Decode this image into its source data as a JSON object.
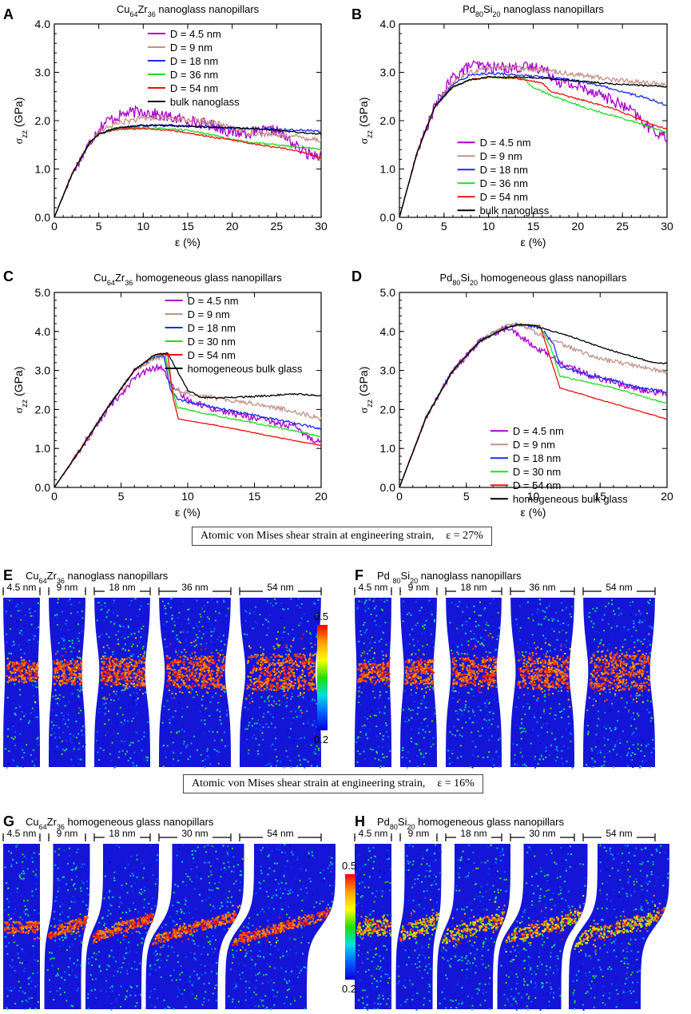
{
  "strain_labels": {
    "top": "Atomic von Mises shear strain at engineering strain,",
    "top_value": "ε = 27%",
    "bottom": "Atomic von Mises shear strain at engineering strain,",
    "bottom_value": "ε = 16%"
  },
  "colorbar": {
    "max": "0.5",
    "min": "0.2"
  },
  "snapshot_panels": [
    {
      "letter": "E",
      "title_pre": "Cu",
      "sub1": "64",
      "mid": "Zr",
      "sub2": "36",
      "title_post": " nanoglass nanopillars",
      "sizes": [
        "4.5 nm",
        "9 nm",
        "18 nm",
        "36 nm",
        "54 nm"
      ]
    },
    {
      "letter": "F",
      "title_pre": "Pd ",
      "sub1": "80",
      "mid": "Si",
      "sub2": "20",
      "title_post": " nanoglass nanopillars",
      "sizes": [
        "4.5 nm",
        "9 nm",
        "18 nm",
        "36 nm",
        "54 nm"
      ]
    },
    {
      "letter": "G",
      "title_pre": "Cu",
      "sub1": "64",
      "mid": "Zr",
      "sub2": "36",
      "title_post": " homogeneous glass nanopillars",
      "sizes": [
        "4.5 nm",
        "9 nm",
        "18 nm",
        "30 nm",
        "54 nm"
      ]
    },
    {
      "letter": "H",
      "title_pre": "Pd",
      "sub1": "80",
      "mid": "Si",
      "sub2": "20",
      "title_post": " homogeneous glass nanopillars",
      "sizes": [
        "4.5 nm",
        "9 nm",
        "18 nm",
        "30 nm",
        "54 nm"
      ]
    }
  ],
  "chart_data": [
    {
      "panel": "A",
      "type": "line",
      "title_pre": "Cu",
      "sub1": "64",
      "mid": "Zr",
      "sub2": "36",
      "title_post": " nanoglass nanopillars",
      "xlabel": "ε (%)",
      "ylabel": "σ",
      "ylabel_sub": "zz",
      "ylabel_unit": " (GPa)",
      "xlim": [
        0,
        30
      ],
      "ylim": [
        0,
        4
      ],
      "xticks": [
        0,
        5,
        10,
        15,
        20,
        25,
        30
      ],
      "xtick_labels": [
        "0",
        "5",
        "10",
        "15",
        "20",
        "25",
        "30"
      ],
      "yticks": [
        0,
        1,
        2,
        3,
        4
      ],
      "ytick_labels": [
        "0.0",
        "1.0",
        "2.0",
        "3.0",
        "4.0"
      ],
      "legend_position": "top-right",
      "series": [
        {
          "name": "D = 4.5 nm",
          "color": "#aa00cc",
          "noise": 0.12,
          "x": [
            0,
            2,
            4,
            5,
            6,
            8,
            10,
            12,
            15,
            18,
            20,
            22,
            25,
            27,
            28,
            29,
            30
          ],
          "y": [
            0,
            0.9,
            1.55,
            1.85,
            2.0,
            2.15,
            2.2,
            2.1,
            2.0,
            1.9,
            1.75,
            1.75,
            1.8,
            1.5,
            1.35,
            1.3,
            1.3
          ]
        },
        {
          "name": "D = 9 nm",
          "color": "#c49088",
          "noise": 0.06,
          "x": [
            0,
            2,
            4,
            5,
            7,
            10,
            13,
            16,
            18,
            20,
            22,
            25,
            28,
            30
          ],
          "y": [
            0,
            0.9,
            1.55,
            1.75,
            1.95,
            2.05,
            2.05,
            2.0,
            1.95,
            1.85,
            1.75,
            1.7,
            1.65,
            1.6
          ]
        },
        {
          "name": "D = 18 nm",
          "color": "#1a2ee8",
          "noise": 0.025,
          "x": [
            0,
            2,
            4,
            5,
            7,
            10,
            13,
            16,
            20,
            25,
            28,
            30
          ],
          "y": [
            0,
            0.9,
            1.55,
            1.72,
            1.85,
            1.9,
            1.9,
            1.88,
            1.85,
            1.82,
            1.8,
            1.78
          ]
        },
        {
          "name": "D = 36 nm",
          "color": "#22dd22",
          "noise": 0.02,
          "x": [
            0,
            2,
            4,
            5,
            7,
            10,
            13,
            15,
            18,
            20,
            22,
            25,
            28,
            30
          ],
          "y": [
            0,
            0.9,
            1.55,
            1.72,
            1.83,
            1.85,
            1.83,
            1.8,
            1.7,
            1.6,
            1.55,
            1.5,
            1.45,
            1.4
          ]
        },
        {
          "name": "D = 54 nm",
          "color": "#ee1111",
          "noise": 0.015,
          "x": [
            0,
            2,
            4,
            5,
            7,
            10,
            13,
            15,
            18,
            20,
            23,
            26,
            28,
            30
          ],
          "y": [
            0,
            0.9,
            1.55,
            1.72,
            1.82,
            1.84,
            1.8,
            1.75,
            1.65,
            1.6,
            1.5,
            1.42,
            1.35,
            1.22
          ]
        },
        {
          "name": "bulk nanoglass",
          "color": "#000000",
          "noise": 0.015,
          "x": [
            0,
            2,
            4,
            5,
            7,
            10,
            13,
            16,
            20,
            23,
            25,
            28,
            30
          ],
          "y": [
            0,
            0.9,
            1.55,
            1.72,
            1.85,
            1.9,
            1.9,
            1.88,
            1.85,
            1.83,
            1.8,
            1.75,
            1.72
          ]
        }
      ]
    },
    {
      "panel": "B",
      "type": "line",
      "title_pre": "Pd",
      "sub1": "80",
      "mid": "Si",
      "sub2": "20",
      "title_post": " nanoglass nanopillars",
      "xlabel": "ε (%)",
      "ylabel": "σ",
      "ylabel_sub": "zz",
      "ylabel_unit": " (GPa)",
      "xlim": [
        0,
        30
      ],
      "ylim": [
        0,
        4
      ],
      "xticks": [
        0,
        5,
        10,
        15,
        20,
        25,
        30
      ],
      "xtick_labels": [
        "0",
        "5",
        "10",
        "15",
        "20",
        "25",
        "30"
      ],
      "yticks": [
        0,
        1,
        2,
        3,
        4
      ],
      "ytick_labels": [
        "0.0",
        "1.0",
        "2.0",
        "3.0",
        "4.0"
      ],
      "legend_position": "bottom-center",
      "series": [
        {
          "name": "D = 4.5 nm",
          "color": "#aa00cc",
          "noise": 0.12,
          "x": [
            0,
            2,
            4,
            6,
            8,
            10,
            13,
            16,
            18,
            20,
            22,
            24,
            26,
            28,
            30
          ],
          "y": [
            0,
            1.35,
            2.3,
            2.9,
            3.15,
            3.1,
            3.1,
            3.1,
            2.8,
            2.7,
            2.6,
            2.4,
            2.2,
            1.85,
            1.65
          ]
        },
        {
          "name": "D = 9 nm",
          "color": "#c49088",
          "noise": 0.05,
          "x": [
            0,
            2,
            4,
            6,
            8,
            10,
            13,
            16,
            20,
            24,
            28,
            30
          ],
          "y": [
            0,
            1.35,
            2.3,
            2.8,
            3.0,
            3.1,
            3.1,
            3.05,
            2.95,
            2.85,
            2.78,
            2.72
          ]
        },
        {
          "name": "D = 18 nm",
          "color": "#1a2ee8",
          "noise": 0.025,
          "x": [
            0,
            2,
            4,
            6,
            8,
            10,
            13,
            16,
            19,
            22,
            25,
            28,
            30
          ],
          "y": [
            0,
            1.35,
            2.3,
            2.75,
            2.95,
            2.98,
            2.95,
            2.9,
            2.85,
            2.75,
            2.6,
            2.45,
            2.32
          ]
        },
        {
          "name": "D = 36 nm",
          "color": "#22dd22",
          "noise": 0.02,
          "x": [
            0,
            2,
            4,
            6,
            8,
            10,
            13,
            14,
            15,
            18,
            22,
            26,
            30
          ],
          "y": [
            0,
            1.35,
            2.3,
            2.7,
            2.85,
            2.9,
            2.88,
            2.85,
            2.68,
            2.45,
            2.2,
            2.0,
            1.75
          ]
        },
        {
          "name": "D = 54 nm",
          "color": "#ee1111",
          "noise": 0.015,
          "x": [
            0,
            2,
            4,
            6,
            8,
            10,
            13,
            16,
            17,
            20,
            24,
            28,
            30
          ],
          "y": [
            0,
            1.35,
            2.3,
            2.7,
            2.85,
            2.9,
            2.88,
            2.78,
            2.6,
            2.45,
            2.25,
            1.95,
            1.82
          ]
        },
        {
          "name": "bulk nanoglass",
          "color": "#000000",
          "noise": 0.015,
          "x": [
            0,
            2,
            4,
            6,
            8,
            10,
            13,
            16,
            20,
            24,
            28,
            30
          ],
          "y": [
            0,
            1.35,
            2.3,
            2.7,
            2.85,
            2.9,
            2.9,
            2.88,
            2.82,
            2.76,
            2.72,
            2.7
          ]
        }
      ]
    },
    {
      "panel": "C",
      "type": "line",
      "title_pre": "Cu",
      "sub1": "64",
      "mid": "Zr",
      "sub2": "36",
      "title_post": " homogeneous glass nanopillars",
      "xlabel": "ε (%)",
      "ylabel": "σ",
      "ylabel_sub": "zz",
      "ylabel_unit": " (GPa)",
      "xlim": [
        0,
        20
      ],
      "ylim": [
        0,
        5
      ],
      "xticks": [
        0,
        5,
        10,
        15,
        20
      ],
      "xtick_labels": [
        "0",
        "5",
        "10",
        "15",
        "20"
      ],
      "yticks": [
        0,
        1,
        2,
        3,
        4,
        5
      ],
      "ytick_labels": [
        "0.0",
        "1.0",
        "2.0",
        "3.0",
        "4.0",
        "5.0"
      ],
      "legend_position": "top-right",
      "series": [
        {
          "name": "D = 4.5 nm",
          "color": "#aa00cc",
          "noise": 0.08,
          "x": [
            0,
            2,
            4,
            6,
            7,
            8,
            9,
            10,
            12,
            14,
            16,
            18,
            19,
            20
          ],
          "y": [
            0,
            1.0,
            2.0,
            2.8,
            3.0,
            3.1,
            2.5,
            2.25,
            2.0,
            1.85,
            1.7,
            1.55,
            1.3,
            1.15
          ]
        },
        {
          "name": "D = 9 nm",
          "color": "#c49088",
          "noise": 0.06,
          "x": [
            0,
            2,
            4,
            6,
            7.5,
            8.3,
            8.8,
            9.5,
            12,
            15,
            18,
            20
          ],
          "y": [
            0,
            1.0,
            2.05,
            3.0,
            3.3,
            3.35,
            2.6,
            2.45,
            2.3,
            2.15,
            1.95,
            1.75
          ]
        },
        {
          "name": "D = 18 nm",
          "color": "#1a2ee8",
          "noise": 0.03,
          "x": [
            0,
            2,
            4,
            6,
            7.5,
            8.2,
            8.7,
            9.3,
            12,
            15,
            18,
            20
          ],
          "y": [
            0,
            1.0,
            2.05,
            3.0,
            3.35,
            3.4,
            2.5,
            2.25,
            2.05,
            1.85,
            1.65,
            1.5
          ]
        },
        {
          "name": "D = 30 nm",
          "color": "#22dd22",
          "noise": 0.02,
          "x": [
            0,
            2,
            4,
            6,
            7.5,
            8.3,
            8.8,
            9.2,
            12,
            15,
            18,
            20
          ],
          "y": [
            0,
            1.0,
            2.05,
            3.0,
            3.38,
            3.42,
            2.6,
            2.05,
            1.85,
            1.65,
            1.45,
            1.3
          ]
        },
        {
          "name": "D = 54 nm",
          "color": "#ee1111",
          "noise": 0.01,
          "x": [
            0,
            2,
            4,
            6,
            7.5,
            8.5,
            8.9,
            9.3,
            10,
            12,
            15,
            18,
            20
          ],
          "y": [
            0,
            1.0,
            2.05,
            3.0,
            3.4,
            3.43,
            2.3,
            1.75,
            1.72,
            1.6,
            1.4,
            1.2,
            1.08
          ]
        },
        {
          "name": "homogeneous bulk glass",
          "color": "#000000",
          "noise": 0.02,
          "x": [
            0,
            2,
            4,
            6,
            7.5,
            8.5,
            9.2,
            10,
            11,
            13,
            16,
            18,
            20
          ],
          "y": [
            0,
            1.0,
            2.05,
            3.0,
            3.4,
            3.45,
            3.0,
            2.5,
            2.3,
            2.3,
            2.35,
            2.4,
            2.35
          ]
        }
      ]
    },
    {
      "panel": "D",
      "type": "line",
      "title_pre": "Pd",
      "sub1": "80",
      "mid": "Si",
      "sub2": "20",
      "title_post": " homogeneous glass nanopillars",
      "xlabel": "ε (%)",
      "ylabel": "σ",
      "ylabel_sub": "zz",
      "ylabel_unit": " (GPa)",
      "xlim": [
        0,
        20
      ],
      "ylim": [
        0,
        5
      ],
      "xticks": [
        0,
        5,
        10,
        15,
        20
      ],
      "xtick_labels": [
        "0",
        "5",
        "10",
        "15",
        "20"
      ],
      "yticks": [
        0,
        1,
        2,
        3,
        4,
        5
      ],
      "ytick_labels": [
        "0.0",
        "1.0",
        "2.0",
        "3.0",
        "4.0",
        "5.0"
      ],
      "legend_position": "bottom-right",
      "series": [
        {
          "name": "D = 4.5 nm",
          "color": "#aa00cc",
          "noise": 0.08,
          "x": [
            0,
            2,
            4,
            6,
            8,
            9,
            10,
            11,
            12,
            14,
            16,
            18,
            20
          ],
          "y": [
            0,
            1.8,
            3.0,
            3.75,
            4.1,
            3.9,
            3.6,
            3.45,
            3.2,
            2.9,
            2.7,
            2.5,
            2.4
          ]
        },
        {
          "name": "D = 9 nm",
          "color": "#c49088",
          "noise": 0.05,
          "x": [
            0,
            2,
            4,
            6,
            8,
            9,
            10,
            11,
            13,
            15,
            18,
            20
          ],
          "y": [
            0,
            1.8,
            3.0,
            3.75,
            4.15,
            4.2,
            4.0,
            3.85,
            3.55,
            3.3,
            3.1,
            2.95
          ]
        },
        {
          "name": "D = 18 nm",
          "color": "#1a2ee8",
          "noise": 0.04,
          "x": [
            0,
            2,
            4,
            6,
            8,
            9,
            10.5,
            11.5,
            12,
            14,
            16,
            18,
            20
          ],
          "y": [
            0,
            1.8,
            3.0,
            3.75,
            4.1,
            4.18,
            4.1,
            3.7,
            3.1,
            2.9,
            2.75,
            2.55,
            2.45
          ]
        },
        {
          "name": "D = 30 nm",
          "color": "#22dd22",
          "noise": 0.02,
          "x": [
            0,
            2,
            4,
            6,
            8,
            9,
            10.5,
            11.3,
            12,
            14,
            16,
            18,
            20
          ],
          "y": [
            0,
            1.8,
            3.0,
            3.75,
            4.1,
            4.18,
            4.15,
            3.6,
            2.85,
            2.7,
            2.55,
            2.35,
            2.15
          ]
        },
        {
          "name": "D = 54 nm",
          "color": "#ee1111",
          "noise": 0.01,
          "x": [
            0,
            2,
            4,
            6,
            8,
            9,
            10.5,
            11.2,
            12,
            13,
            16,
            18,
            20
          ],
          "y": [
            0,
            1.8,
            3.0,
            3.75,
            4.1,
            4.18,
            4.15,
            3.4,
            2.55,
            2.45,
            2.15,
            1.95,
            1.75
          ]
        },
        {
          "name": "homogeneous bulk glass",
          "color": "#000000",
          "noise": 0.015,
          "x": [
            0,
            2,
            4,
            6,
            8,
            9,
            10,
            11,
            13,
            15,
            17,
            19,
            20
          ],
          "y": [
            0,
            1.8,
            3.0,
            3.75,
            4.1,
            4.18,
            4.15,
            4.05,
            3.85,
            3.6,
            3.4,
            3.2,
            3.18
          ]
        }
      ]
    }
  ]
}
